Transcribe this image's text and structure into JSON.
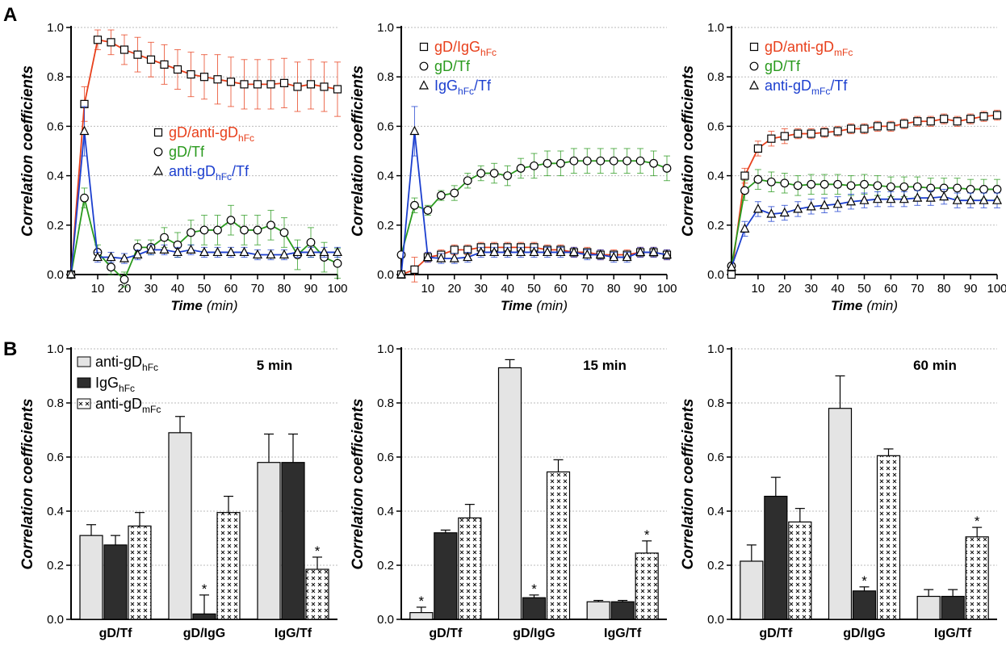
{
  "panel_labels": [
    "A",
    "B"
  ],
  "colors": {
    "gd_partner": "#e8401c",
    "gd_tf": "#2a9a1e",
    "partner_tf": "#1c3fcf",
    "bar_anti_gd_hfc": "#e4e4e4",
    "bar_igg_hfc": "#2e2e2e",
    "bar_anti_gd_mfc": "#ffffff"
  },
  "chart_data": [
    {
      "type": "line",
      "ylabel": "Correlation coefficients",
      "xlabel_main": "Time",
      "xlabel_unit": "(min)",
      "ylim": [
        0,
        1
      ],
      "y_ticks": [
        "0.0",
        "0.2",
        "0.4",
        "0.6",
        "0.8",
        "1.0"
      ],
      "x_ticks": [
        10,
        20,
        30,
        40,
        50,
        60,
        70,
        80,
        90,
        100
      ],
      "grid": "horizontal dotted",
      "legend_position": "middle-right",
      "x": [
        0,
        5,
        10,
        15,
        20,
        25,
        30,
        35,
        40,
        45,
        50,
        55,
        60,
        65,
        70,
        75,
        80,
        85,
        90,
        95,
        100
      ],
      "series": [
        {
          "legend_parts": [
            {
              "t": "gD/",
              "c": "gd_partner"
            },
            {
              "t": "anti-gD",
              "c": "gd_partner"
            },
            {
              "t": "hFc",
              "c": "gd_partner",
              "sub": true
            }
          ],
          "color": "gd_partner",
          "marker": "square",
          "values": [
            0,
            0.69,
            0.95,
            0.94,
            0.91,
            0.89,
            0.87,
            0.85,
            0.83,
            0.81,
            0.8,
            0.79,
            0.78,
            0.77,
            0.77,
            0.77,
            0.775,
            0.76,
            0.77,
            0.76,
            0.75
          ],
          "errors": [
            0,
            0.07,
            0.04,
            0.05,
            0.06,
            0.07,
            0.07,
            0.08,
            0.08,
            0.09,
            0.09,
            0.1,
            0.1,
            0.1,
            0.1,
            0.1,
            0.1,
            0.1,
            0.1,
            0.1,
            0.11
          ]
        },
        {
          "legend_parts": [
            {
              "t": "gD/",
              "c": "gd_tf"
            },
            {
              "t": "Tf",
              "c": "gd_tf"
            }
          ],
          "color": "gd_tf",
          "marker": "circle",
          "values": [
            0,
            0.31,
            0.09,
            0.03,
            -0.02,
            0.11,
            0.11,
            0.15,
            0.12,
            0.17,
            0.18,
            0.18,
            0.22,
            0.18,
            0.18,
            0.2,
            0.17,
            0.08,
            0.13,
            0.07,
            0.045
          ],
          "errors": [
            0,
            0.04,
            0.03,
            0.03,
            0.03,
            0.03,
            0.03,
            0.04,
            0.05,
            0.05,
            0.06,
            0.06,
            0.06,
            0.06,
            0.06,
            0.06,
            0.06,
            0.06,
            0.06,
            0.06,
            0.06
          ]
        },
        {
          "legend_parts": [
            {
              "t": "anti-gD",
              "c": "partner_tf"
            },
            {
              "t": "hFc",
              "c": "partner_tf",
              "sub": true
            },
            {
              "t": "/Tf",
              "c": "partner_tf"
            }
          ],
          "color": "partner_tf",
          "marker": "triangle",
          "values": [
            0,
            0.58,
            0.07,
            0.07,
            0.065,
            0.08,
            0.1,
            0.1,
            0.09,
            0.1,
            0.09,
            0.09,
            0.09,
            0.09,
            0.08,
            0.08,
            0.08,
            0.09,
            0.09,
            0.09,
            0.09
          ],
          "errors": [
            0,
            0.1,
            0.02,
            0.02,
            0.02,
            0.02,
            0.02,
            0.02,
            0.02,
            0.02,
            0.02,
            0.02,
            0.02,
            0.02,
            0.02,
            0.02,
            0.02,
            0.02,
            0.02,
            0.02,
            0.02
          ]
        }
      ]
    },
    {
      "type": "line",
      "ylabel": "Correlation coefficients",
      "xlabel_main": "Time",
      "xlabel_unit": "(min)",
      "ylim": [
        0,
        1
      ],
      "y_ticks": [
        "0.0",
        "0.2",
        "0.4",
        "0.6",
        "0.8",
        "1.0"
      ],
      "x_ticks": [
        10,
        20,
        30,
        40,
        50,
        60,
        70,
        80,
        90,
        100
      ],
      "grid": "horizontal dotted",
      "legend_position": "top-left",
      "x": [
        0,
        5,
        10,
        15,
        20,
        25,
        30,
        35,
        40,
        45,
        50,
        55,
        60,
        65,
        70,
        75,
        80,
        85,
        90,
        95,
        100
      ],
      "series": [
        {
          "legend_parts": [
            {
              "t": "gD/",
              "c": "gd_partner"
            },
            {
              "t": "IgG",
              "c": "gd_partner"
            },
            {
              "t": "hFc",
              "c": "gd_partner",
              "sub": true
            }
          ],
          "color": "gd_partner",
          "marker": "square",
          "values": [
            0,
            0.02,
            0.07,
            0.08,
            0.1,
            0.1,
            0.11,
            0.11,
            0.11,
            0.11,
            0.11,
            0.1,
            0.1,
            0.09,
            0.09,
            0.08,
            0.08,
            0.08,
            0.09,
            0.09,
            0.08
          ],
          "errors": [
            0,
            0.05,
            0.02,
            0.02,
            0.02,
            0.02,
            0.02,
            0.02,
            0.02,
            0.02,
            0.02,
            0.02,
            0.02,
            0.02,
            0.02,
            0.02,
            0.02,
            0.02,
            0.02,
            0.02,
            0.02
          ]
        },
        {
          "legend_parts": [
            {
              "t": "gD/",
              "c": "gd_tf"
            },
            {
              "t": "Tf",
              "c": "gd_tf"
            }
          ],
          "color": "gd_tf",
          "marker": "circle",
          "values": [
            0.08,
            0.28,
            0.26,
            0.32,
            0.33,
            0.38,
            0.41,
            0.41,
            0.4,
            0.43,
            0.44,
            0.45,
            0.45,
            0.46,
            0.46,
            0.46,
            0.46,
            0.46,
            0.46,
            0.45,
            0.43
          ],
          "errors": [
            0,
            0.03,
            0.02,
            0.02,
            0.03,
            0.03,
            0.03,
            0.04,
            0.04,
            0.04,
            0.05,
            0.05,
            0.05,
            0.05,
            0.05,
            0.05,
            0.05,
            0.05,
            0.05,
            0.05,
            0.05
          ]
        },
        {
          "legend_parts": [
            {
              "t": "IgG",
              "c": "partner_tf"
            },
            {
              "t": "hFc",
              "c": "partner_tf",
              "sub": true
            },
            {
              "t": "/Tf",
              "c": "partner_tf"
            }
          ],
          "color": "partner_tf",
          "marker": "triangle",
          "values": [
            0,
            0.58,
            0.07,
            0.065,
            0.065,
            0.07,
            0.09,
            0.09,
            0.09,
            0.09,
            0.09,
            0.09,
            0.09,
            0.09,
            0.08,
            0.08,
            0.07,
            0.07,
            0.09,
            0.09,
            0.08
          ],
          "errors": [
            0,
            0.1,
            0.02,
            0.02,
            0.02,
            0.02,
            0.02,
            0.02,
            0.02,
            0.02,
            0.02,
            0.02,
            0.02,
            0.02,
            0.02,
            0.02,
            0.02,
            0.02,
            0.02,
            0.02,
            0.02
          ]
        }
      ]
    },
    {
      "type": "line",
      "ylabel": "Correlation coefficients",
      "xlabel_main": "Time",
      "xlabel_unit": "(min)",
      "ylim": [
        0,
        1
      ],
      "y_ticks": [
        "0.0",
        "0.2",
        "0.4",
        "0.6",
        "0.8",
        "1.0"
      ],
      "x_ticks": [
        10,
        20,
        30,
        40,
        50,
        60,
        70,
        80,
        90,
        100
      ],
      "grid": "horizontal dotted",
      "legend_position": "top-left",
      "x": [
        0,
        5,
        10,
        15,
        20,
        25,
        30,
        35,
        40,
        45,
        50,
        55,
        60,
        65,
        70,
        75,
        80,
        85,
        90,
        95,
        100
      ],
      "series": [
        {
          "legend_parts": [
            {
              "t": "gD/",
              "c": "gd_partner"
            },
            {
              "t": "anti-gD",
              "c": "gd_partner"
            },
            {
              "t": "mFc",
              "c": "gd_partner",
              "sub": true
            }
          ],
          "color": "gd_partner",
          "marker": "square",
          "values": [
            0,
            0.4,
            0.51,
            0.55,
            0.56,
            0.57,
            0.57,
            0.575,
            0.58,
            0.59,
            0.59,
            0.6,
            0.6,
            0.61,
            0.62,
            0.62,
            0.63,
            0.62,
            0.63,
            0.64,
            0.645
          ],
          "errors": [
            0,
            0.03,
            0.03,
            0.03,
            0.03,
            0.02,
            0.02,
            0.02,
            0.02,
            0.02,
            0.02,
            0.02,
            0.02,
            0.02,
            0.02,
            0.02,
            0.02,
            0.02,
            0.02,
            0.02,
            0.02
          ]
        },
        {
          "legend_parts": [
            {
              "t": "gD/",
              "c": "gd_tf"
            },
            {
              "t": "Tf",
              "c": "gd_tf"
            }
          ],
          "color": "gd_tf",
          "marker": "circle",
          "values": [
            0.035,
            0.34,
            0.385,
            0.375,
            0.37,
            0.36,
            0.365,
            0.365,
            0.365,
            0.36,
            0.365,
            0.36,
            0.355,
            0.355,
            0.355,
            0.35,
            0.35,
            0.35,
            0.345,
            0.345,
            0.345
          ],
          "errors": [
            0,
            0.04,
            0.04,
            0.04,
            0.04,
            0.04,
            0.04,
            0.04,
            0.04,
            0.04,
            0.04,
            0.04,
            0.04,
            0.04,
            0.04,
            0.04,
            0.04,
            0.04,
            0.04,
            0.04,
            0.04
          ]
        },
        {
          "legend_parts": [
            {
              "t": "anti-gD",
              "c": "partner_tf"
            },
            {
              "t": "mFc",
              "c": "partner_tf",
              "sub": true
            },
            {
              "t": "/Tf",
              "c": "partner_tf"
            }
          ],
          "color": "partner_tf",
          "marker": "triangle",
          "values": [
            0.03,
            0.185,
            0.265,
            0.245,
            0.25,
            0.265,
            0.275,
            0.28,
            0.285,
            0.295,
            0.3,
            0.305,
            0.305,
            0.305,
            0.31,
            0.31,
            0.315,
            0.3,
            0.3,
            0.3,
            0.3
          ],
          "errors": [
            0,
            0.03,
            0.03,
            0.03,
            0.03,
            0.03,
            0.03,
            0.03,
            0.03,
            0.03,
            0.03,
            0.03,
            0.03,
            0.03,
            0.03,
            0.03,
            0.03,
            0.03,
            0.03,
            0.03,
            0.03
          ]
        }
      ]
    },
    {
      "type": "bar",
      "title": "5 min",
      "ylabel": "Correlation coefficients",
      "ylim": [
        0,
        1
      ],
      "y_ticks": [
        "0.0",
        "0.2",
        "0.4",
        "0.6",
        "0.8",
        "1.0"
      ],
      "grid": "horizontal dotted",
      "legend_position": "top-left",
      "categories": [
        "gD/Tf",
        "gD/IgG",
        "IgG/Tf"
      ],
      "series": [
        {
          "legend_main": "anti-gD",
          "legend_sub": "hFc",
          "fill": "bar_anti_gd_hfc",
          "values": [
            0.31,
            0.69,
            0.58
          ],
          "errors": [
            0.04,
            0.06,
            0.105
          ],
          "stars": [
            false,
            false,
            false
          ]
        },
        {
          "legend_main": "IgG",
          "legend_sub": "hFc",
          "fill": "bar_igg_hfc",
          "values": [
            0.275,
            0.02,
            0.58
          ],
          "errors": [
            0.035,
            0.07,
            0.105
          ],
          "stars": [
            false,
            true,
            false
          ]
        },
        {
          "legend_main": "anti-gD",
          "legend_sub": "mFc",
          "fill": "bar_anti_gd_mfc",
          "pattern": true,
          "values": [
            0.345,
            0.395,
            0.185
          ],
          "errors": [
            0.05,
            0.06,
            0.045
          ],
          "stars": [
            false,
            false,
            true
          ]
        }
      ]
    },
    {
      "type": "bar",
      "title": "15 min",
      "ylabel": "Correlation coefficients",
      "ylim": [
        0,
        1
      ],
      "y_ticks": [
        "0.0",
        "0.2",
        "0.4",
        "0.6",
        "0.8",
        "1.0"
      ],
      "grid": "horizontal dotted",
      "categories": [
        "gD/Tf",
        "gD/IgG",
        "IgG/Tf"
      ],
      "series": [
        {
          "fill": "bar_anti_gd_hfc",
          "values": [
            0.025,
            0.93,
            0.065
          ],
          "errors": [
            0.02,
            0.03,
            0.005
          ],
          "stars": [
            true,
            false,
            false
          ]
        },
        {
          "fill": "bar_igg_hfc",
          "values": [
            0.32,
            0.08,
            0.065
          ],
          "errors": [
            0.01,
            0.01,
            0.005
          ],
          "stars": [
            false,
            true,
            false
          ]
        },
        {
          "fill": "bar_anti_gd_mfc",
          "pattern": true,
          "values": [
            0.375,
            0.545,
            0.245
          ],
          "errors": [
            0.05,
            0.045,
            0.045
          ],
          "stars": [
            false,
            false,
            true
          ]
        }
      ]
    },
    {
      "type": "bar",
      "title": "60 min",
      "ylabel": "Correlation coefficients",
      "ylim": [
        0,
        1
      ],
      "y_ticks": [
        "0.0",
        "0.2",
        "0.4",
        "0.6",
        "0.8",
        "1.0"
      ],
      "grid": "horizontal dotted",
      "categories": [
        "gD/Tf",
        "gD/IgG",
        "IgG/Tf"
      ],
      "series": [
        {
          "fill": "bar_anti_gd_hfc",
          "values": [
            0.215,
            0.78,
            0.085
          ],
          "errors": [
            0.06,
            0.12,
            0.025
          ],
          "stars": [
            false,
            false,
            false
          ]
        },
        {
          "fill": "bar_igg_hfc",
          "values": [
            0.455,
            0.105,
            0.085
          ],
          "errors": [
            0.07,
            0.015,
            0.025
          ],
          "stars": [
            false,
            true,
            false
          ]
        },
        {
          "fill": "bar_anti_gd_mfc",
          "pattern": true,
          "values": [
            0.36,
            0.605,
            0.305
          ],
          "errors": [
            0.05,
            0.025,
            0.035
          ],
          "stars": [
            false,
            false,
            true
          ]
        }
      ]
    }
  ]
}
